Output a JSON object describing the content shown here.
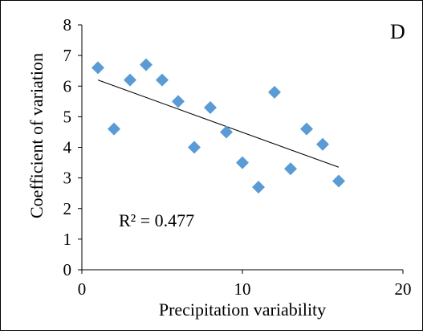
{
  "chart_data": {
    "type": "scatter",
    "panel_label": "D",
    "xlabel": "Precipitation variability",
    "ylabel": "Coefficient of variation",
    "xlim": [
      0,
      20
    ],
    "ylim": [
      0,
      8
    ],
    "xticks": [
      0,
      10,
      20
    ],
    "yticks": [
      0,
      1,
      2,
      3,
      4,
      5,
      6,
      7,
      8
    ],
    "grid": false,
    "marker": "diamond",
    "marker_color": "#5B9BD5",
    "trendline_color": "#000000",
    "annotation": "R² = 0.477",
    "trendline": {
      "x_start": 1,
      "y_start": 6.2,
      "x_end": 16,
      "y_end": 3.35
    },
    "points": [
      {
        "x": 1,
        "y": 6.6
      },
      {
        "x": 2,
        "y": 4.6
      },
      {
        "x": 3,
        "y": 6.2
      },
      {
        "x": 4,
        "y": 6.7
      },
      {
        "x": 5,
        "y": 6.2
      },
      {
        "x": 6,
        "y": 5.5
      },
      {
        "x": 7,
        "y": 4.0
      },
      {
        "x": 8,
        "y": 5.3
      },
      {
        "x": 9,
        "y": 4.5
      },
      {
        "x": 10,
        "y": 3.5
      },
      {
        "x": 11,
        "y": 2.7
      },
      {
        "x": 12,
        "y": 5.8
      },
      {
        "x": 13,
        "y": 3.3
      },
      {
        "x": 14,
        "y": 4.6
      },
      {
        "x": 15,
        "y": 4.1
      },
      {
        "x": 16,
        "y": 2.9
      }
    ]
  }
}
